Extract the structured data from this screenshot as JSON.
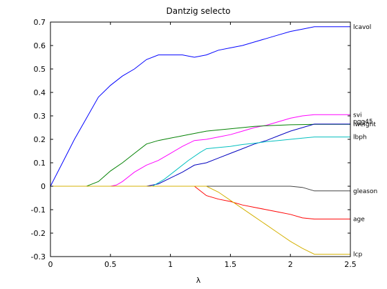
{
  "chart_data": {
    "type": "line",
    "title": "Dantzig selecto",
    "xlabel": "λ",
    "ylabel": "",
    "xlim": [
      0,
      2.5
    ],
    "ylim": [
      -0.3,
      0.7
    ],
    "xticks": [
      "0",
      "0.5",
      "1",
      "1.5",
      "2",
      "2.5"
    ],
    "yticks": [
      "-0.3",
      "-0.2",
      "-0.1",
      "0",
      "0.1",
      "0.2",
      "0.3",
      "0.4",
      "0.5",
      "0.6",
      "0.7"
    ],
    "grid": false,
    "series": [
      {
        "name": "lcavol",
        "color": "#0000ff",
        "x": [
          0,
          0.1,
          0.2,
          0.3,
          0.4,
          0.5,
          0.6,
          0.7,
          0.8,
          0.9,
          1.0,
          1.1,
          1.2,
          1.3,
          1.4,
          1.5,
          1.6,
          1.7,
          1.8,
          1.9,
          2.0,
          2.1,
          2.2,
          2.5
        ],
        "y": [
          0,
          0.1,
          0.2,
          0.29,
          0.38,
          0.43,
          0.47,
          0.5,
          0.54,
          0.56,
          0.56,
          0.56,
          0.55,
          0.56,
          0.58,
          0.59,
          0.6,
          0.615,
          0.63,
          0.645,
          0.66,
          0.67,
          0.68,
          0.68
        ]
      },
      {
        "name": "svi",
        "color": "#ff00ff",
        "x": [
          0,
          0.5,
          0.55,
          0.6,
          0.7,
          0.8,
          0.9,
          1.0,
          1.1,
          1.2,
          1.3,
          1.4,
          1.5,
          1.6,
          1.7,
          1.8,
          1.9,
          2.0,
          2.1,
          2.2,
          2.5
        ],
        "y": [
          0,
          0,
          0.005,
          0.02,
          0.06,
          0.09,
          0.11,
          0.14,
          0.17,
          0.195,
          0.2,
          0.21,
          0.22,
          0.235,
          0.25,
          0.26,
          0.275,
          0.29,
          0.3,
          0.305,
          0.305
        ]
      },
      {
        "name": "lweight",
        "color": "#008000",
        "x": [
          0,
          0.3,
          0.4,
          0.5,
          0.6,
          0.7,
          0.8,
          0.9,
          1.0,
          1.1,
          1.2,
          1.3,
          1.4,
          1.5,
          1.6,
          1.7,
          1.8,
          1.9,
          2.0,
          2.1,
          2.2,
          2.5
        ],
        "y": [
          0,
          0,
          0.02,
          0.065,
          0.1,
          0.14,
          0.18,
          0.195,
          0.205,
          0.215,
          0.225,
          0.235,
          0.24,
          0.245,
          0.25,
          0.255,
          0.258,
          0.26,
          0.262,
          0.263,
          0.264,
          0.264
        ]
      },
      {
        "name": "pgg45",
        "color": "#0000bf",
        "x": [
          0,
          0.8,
          0.9,
          1.0,
          1.1,
          1.2,
          1.3,
          1.4,
          1.5,
          1.6,
          1.7,
          1.8,
          1.9,
          2.0,
          2.1,
          2.2,
          2.5
        ],
        "y": [
          0,
          0,
          0.01,
          0.035,
          0.06,
          0.09,
          0.1,
          0.12,
          0.14,
          0.16,
          0.18,
          0.195,
          0.215,
          0.235,
          0.25,
          0.265,
          0.265
        ]
      },
      {
        "name": "lbph",
        "color": "#00bfbf",
        "x": [
          0,
          0.85,
          0.95,
          1.05,
          1.15,
          1.25,
          1.3,
          1.4,
          1.5,
          1.6,
          1.7,
          1.8,
          1.9,
          2.0,
          2.1,
          2.2,
          2.5
        ],
        "y": [
          0,
          0,
          0.03,
          0.07,
          0.11,
          0.145,
          0.16,
          0.165,
          0.17,
          0.178,
          0.183,
          0.19,
          0.195,
          0.2,
          0.205,
          0.21,
          0.21
        ]
      },
      {
        "name": "gleason",
        "color": "#404040",
        "x": [
          0,
          2.0,
          2.1,
          2.2,
          2.5
        ],
        "y": [
          0,
          0,
          -0.005,
          -0.02,
          -0.02
        ]
      },
      {
        "name": "age",
        "color": "#ff0000",
        "x": [
          0,
          1.2,
          1.3,
          1.4,
          1.5,
          1.6,
          1.7,
          1.8,
          1.9,
          2.0,
          2.1,
          2.2,
          2.5
        ],
        "y": [
          0,
          0,
          -0.04,
          -0.055,
          -0.065,
          -0.08,
          -0.09,
          -0.1,
          -0.11,
          -0.12,
          -0.135,
          -0.14,
          -0.14
        ]
      },
      {
        "name": "lcp",
        "color": "#d4b000",
        "x": [
          0,
          1.3,
          1.4,
          1.5,
          1.6,
          1.7,
          1.8,
          1.9,
          2.0,
          2.1,
          2.2,
          2.5
        ],
        "y": [
          0,
          0,
          -0.025,
          -0.06,
          -0.095,
          -0.13,
          -0.165,
          -0.2,
          -0.235,
          -0.265,
          -0.29,
          -0.29
        ]
      }
    ],
    "end_labels": [
      {
        "text": "lcavol",
        "y": 0.68
      },
      {
        "text": "svi",
        "y": 0.305
      },
      {
        "text": "pgg45",
        "y": 0.276
      },
      {
        "text": "lweight",
        "y": 0.264
      },
      {
        "text": "lbph",
        "y": 0.21
      },
      {
        "text": "gleason",
        "y": -0.02
      },
      {
        "text": "age",
        "y": -0.14
      },
      {
        "text": "lcp",
        "y": -0.29
      }
    ]
  }
}
